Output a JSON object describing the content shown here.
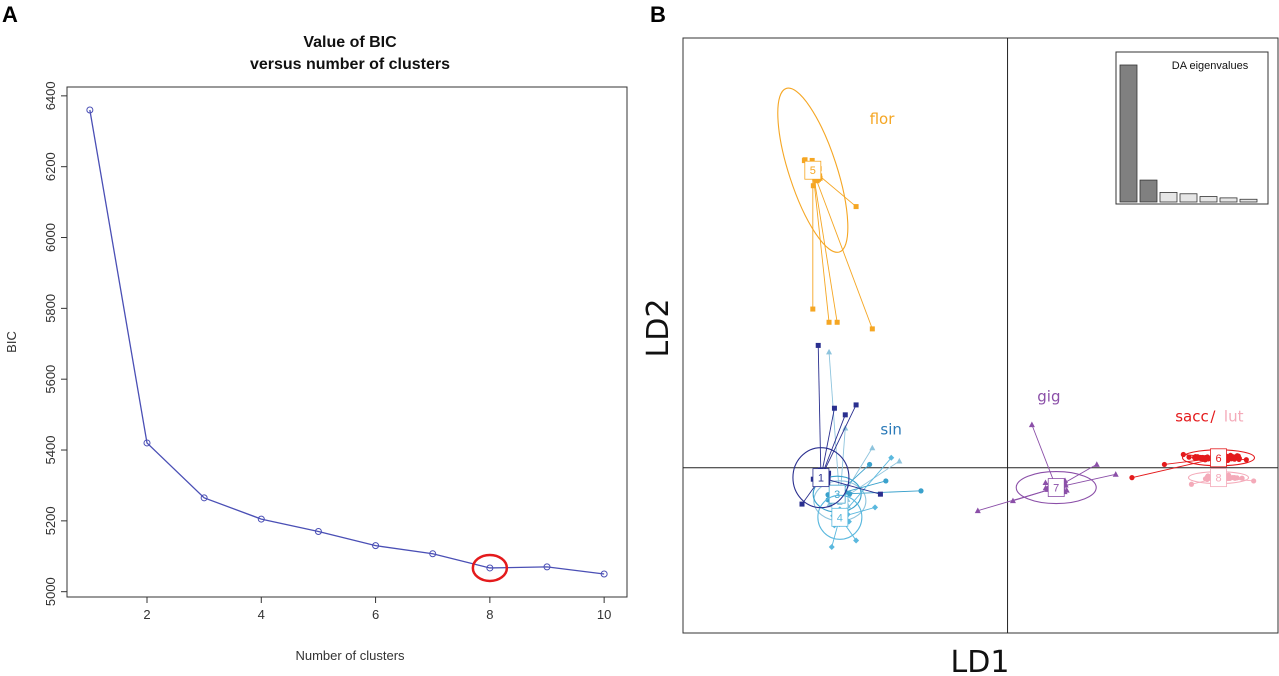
{
  "panels": {
    "a": "A",
    "b": "B"
  },
  "chart_data": [
    {
      "type": "line",
      "title": "Value of BIC",
      "subtitle": "versus number of clusters",
      "xlabel": "Number of clusters",
      "ylabel": "BIC",
      "x": [
        1,
        2,
        3,
        4,
        5,
        6,
        7,
        8,
        9,
        10
      ],
      "y": [
        6360,
        5420,
        5265,
        5205,
        5170,
        5130,
        5107,
        5067,
        5070,
        5050
      ],
      "xticks": [
        2,
        4,
        6,
        8,
        10
      ],
      "yticks": [
        5000,
        5200,
        5400,
        5600,
        5800,
        6000,
        6200,
        6400
      ],
      "xlim": [
        0.6,
        10.4
      ],
      "ylim": [
        4985,
        6425
      ],
      "line_color": "#4a4fb5",
      "highlight": {
        "x": 8,
        "y": 5067,
        "color": "#e41a1c"
      }
    },
    {
      "type": "scatter",
      "xlabel": "LD1",
      "ylabel": "LD2",
      "xlim": [
        -12,
        10
      ],
      "ylim": [
        -5,
        13
      ],
      "axis_lines": {
        "x": 0,
        "y": 0
      },
      "groups": [
        {
          "id": "1",
          "color": "#2a2f8f",
          "center": [
            -6.9,
            -0.3
          ]
        },
        {
          "id": "2",
          "color": "#8ec4dd",
          "center": [
            -6.2,
            -1.0
          ]
        },
        {
          "id": "3",
          "color": "#3aa1cc",
          "center": [
            -6.3,
            -0.8
          ]
        },
        {
          "id": "4",
          "color": "#5ab8de",
          "center": [
            -6.2,
            -1.5
          ]
        },
        {
          "id": "5",
          "color": "#f5a623",
          "center": [
            -7.2,
            9.0
          ]
        },
        {
          "id": "6",
          "color": "#e41a1c",
          "center": [
            7.8,
            0.3
          ]
        },
        {
          "id": "7",
          "color": "#8b4fa8",
          "center": [
            1.8,
            -0.6
          ]
        },
        {
          "id": "8",
          "color": "#f4aab9",
          "center": [
            7.8,
            -0.3
          ]
        }
      ],
      "group_labels": [
        {
          "text": "flor",
          "color": "#f5a623",
          "pos": [
            -5.1,
            10.4
          ]
        },
        {
          "text": "sin",
          "color": "#2b7ab8",
          "pos": [
            -4.7,
            1.0
          ]
        },
        {
          "text": "gig",
          "color": "#8b4fa8",
          "pos": [
            1.1,
            2.0
          ]
        },
        {
          "text": "sacc",
          "color": "#e41a1c",
          "pos": [
            6.2,
            1.4
          ]
        },
        {
          "text": "/",
          "color": "#e41a1c",
          "pos": [
            7.5,
            1.4
          ]
        },
        {
          "text": "lut",
          "color": "#f4aab9",
          "pos": [
            8.0,
            1.4
          ]
        }
      ],
      "inset": {
        "title": "DA eigenvalues",
        "values": [
          1.0,
          0.16,
          0.07,
          0.06,
          0.04,
          0.03,
          0.02
        ],
        "colors": [
          "#808080",
          "#808080",
          "#e6e6e6",
          "#e6e6e6",
          "#e6e6e6",
          "#e6e6e6",
          "#e6e6e6"
        ]
      }
    }
  ]
}
